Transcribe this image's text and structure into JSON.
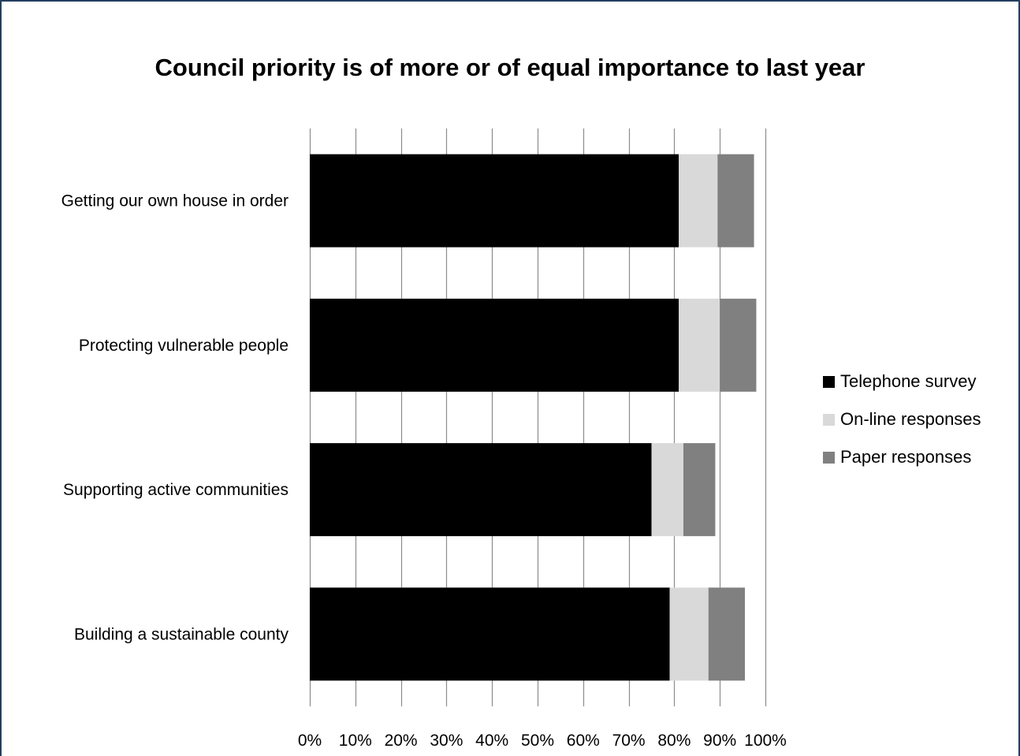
{
  "chart_data": {
    "type": "bar",
    "orientation": "horizontal",
    "stacked": true,
    "title": "Council priority is of more or of equal importance to last year",
    "categories": [
      "Getting our own house in order",
      "Protecting vulnerable people",
      "Supporting active communities",
      "Building a sustainable county"
    ],
    "series": [
      {
        "name": "Telephone survey",
        "color": "#000000",
        "values": [
          81,
          81,
          75,
          79
        ]
      },
      {
        "name": "On-line responses",
        "color": "#d9d9d9",
        "values": [
          8.5,
          9,
          7,
          8.5
        ]
      },
      {
        "name": "Paper responses",
        "color": "#808080",
        "values": [
          8,
          8,
          7,
          8
        ]
      }
    ],
    "xlim": [
      0,
      100
    ],
    "x_ticks": [
      "0%",
      "10%",
      "20%",
      "30%",
      "40%",
      "50%",
      "60%",
      "70%",
      "80%",
      "90%",
      "100%"
    ],
    "grid": true,
    "legend_position": "right"
  }
}
